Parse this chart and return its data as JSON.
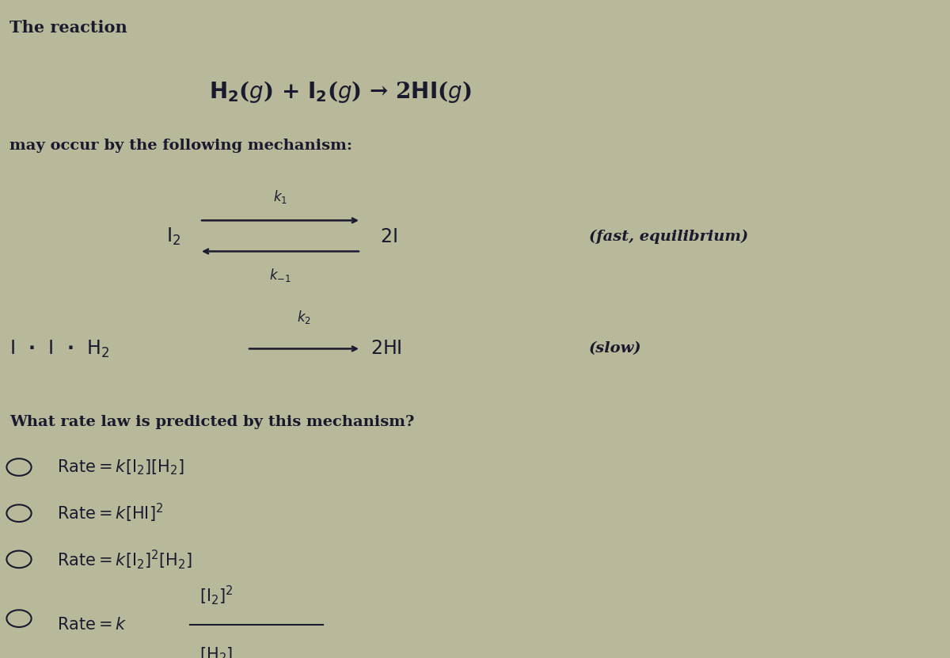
{
  "background_color": "#b8b89a",
  "text_color": "#1a1a2e",
  "title_text": "The reaction",
  "mechanism_intro": "may occur by the following mechanism:",
  "question": "What rate law is predicted by this mechanism?",
  "step1_note": "(fast, equilibrium)",
  "step2_note": "(slow)",
  "fontsize_title": 15,
  "fontsize_reaction": 20,
  "fontsize_body": 14,
  "fontsize_chem": 17,
  "fontsize_k": 12,
  "fontsize_option": 15
}
